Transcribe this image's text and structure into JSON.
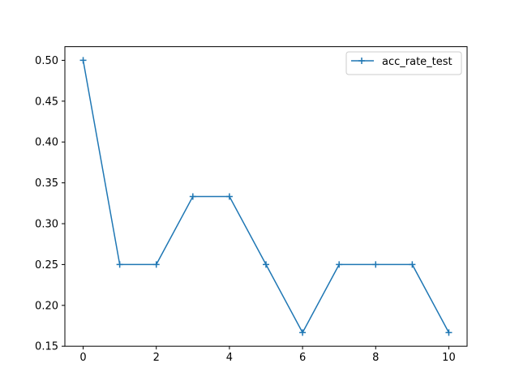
{
  "chart_data": {
    "type": "line",
    "title": "",
    "xlabel": "",
    "ylabel": "",
    "xlim": [
      -0.5,
      10.5
    ],
    "ylim": [
      0.15,
      0.5167
    ],
    "xticks": [
      0,
      2,
      4,
      6,
      8,
      10
    ],
    "xtick_labels": [
      "0",
      "2",
      "4",
      "6",
      "8",
      "10"
    ],
    "yticks": [
      0.15,
      0.2,
      0.25,
      0.3,
      0.35,
      0.4,
      0.45,
      0.5
    ],
    "ytick_labels": [
      "0.15",
      "0.20",
      "0.25",
      "0.30",
      "0.35",
      "0.40",
      "0.45",
      "0.50"
    ],
    "grid": false,
    "legend_position": "upper right",
    "series": [
      {
        "name": "acc_rate_test",
        "color": "#1f77b4",
        "marker": "plus",
        "x": [
          0,
          1,
          2,
          3,
          4,
          5,
          6,
          7,
          8,
          9,
          10
        ],
        "y": [
          0.5,
          0.25,
          0.25,
          0.3333,
          0.3333,
          0.25,
          0.1667,
          0.25,
          0.25,
          0.25,
          0.1667
        ]
      }
    ]
  }
}
